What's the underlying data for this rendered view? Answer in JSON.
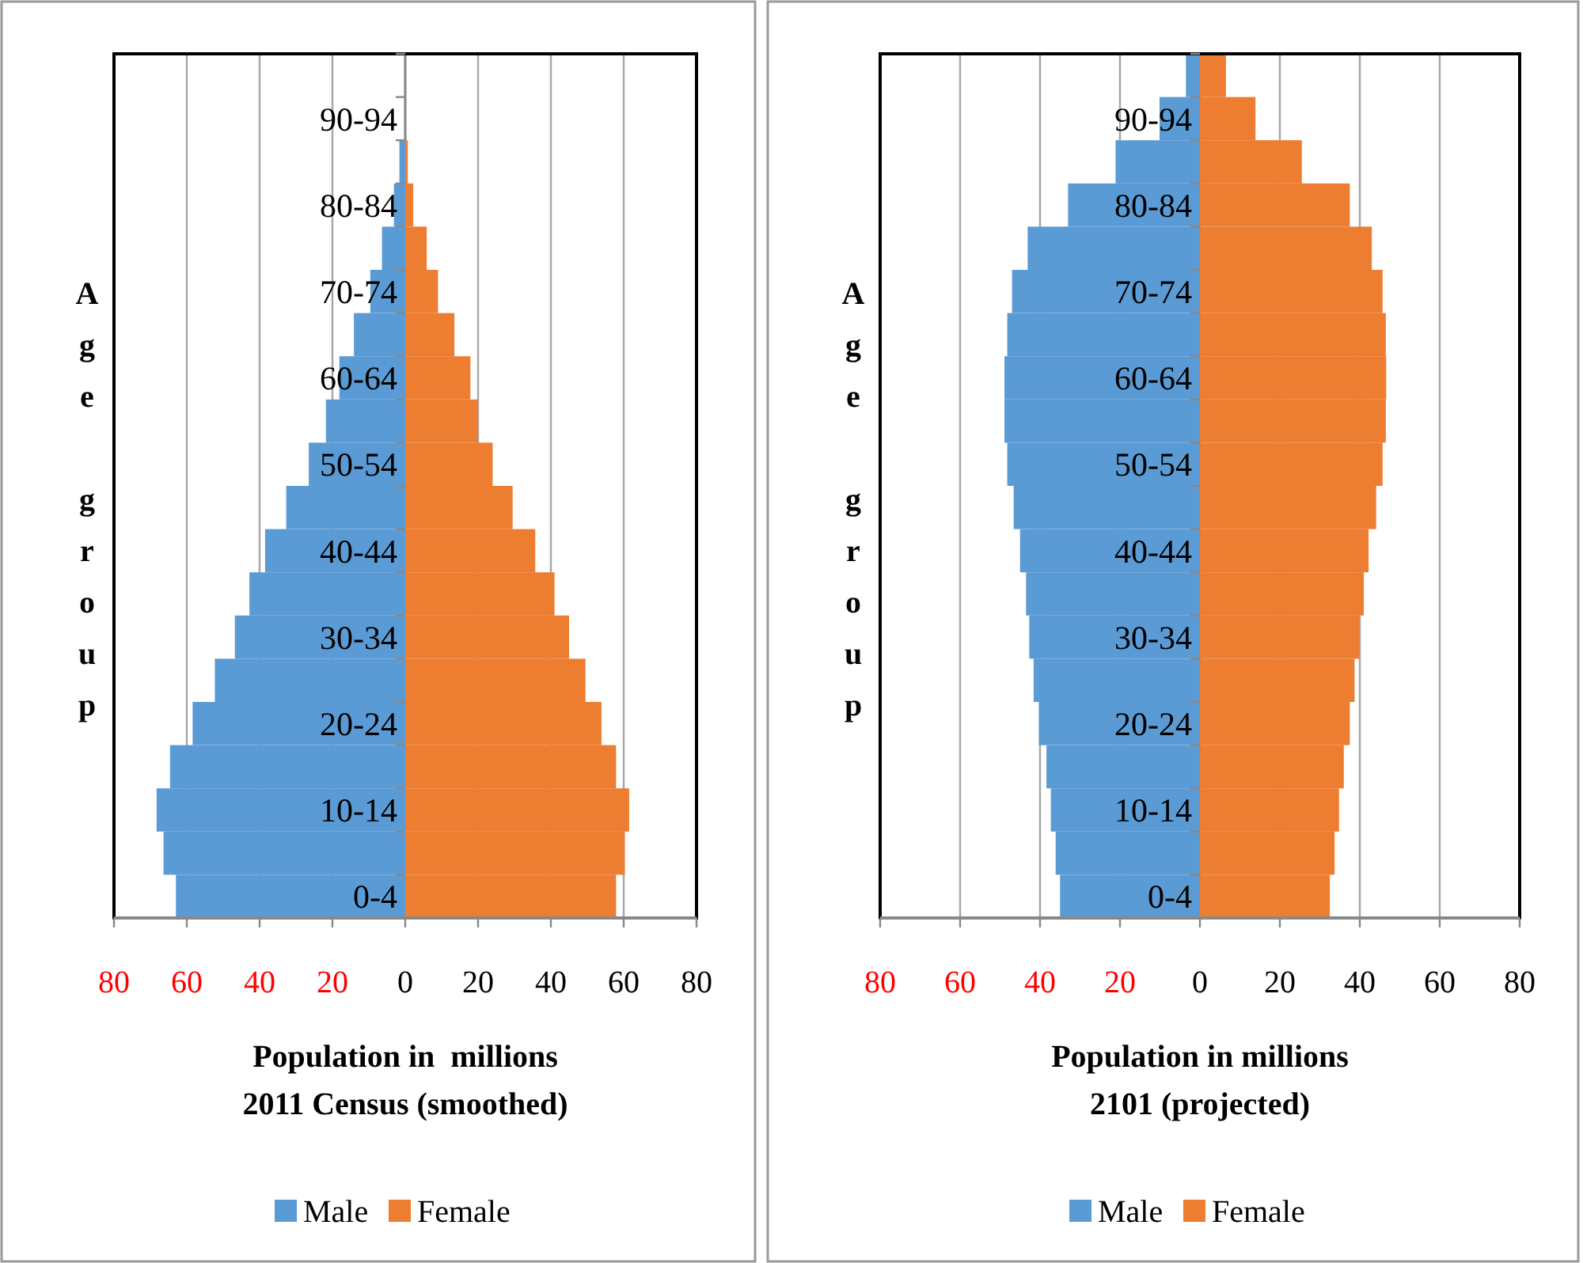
{
  "chart_data": [
    {
      "type": "bar",
      "orientation": "horizontal",
      "ylabel": "Age group",
      "xlabel": "Population in  millions\n2011 Census (smoothed)",
      "categories": [
        null,
        "90-94",
        null,
        "80-84",
        null,
        "70-74",
        null,
        "60-64",
        null,
        "50-54",
        null,
        "40-44",
        null,
        "30-34",
        null,
        "20-24",
        null,
        "10-14",
        null,
        "0-4"
      ],
      "series": [
        {
          "name": "Male",
          "color": "#5b9bd5",
          "values": [
            0,
            0,
            -1.6,
            -3.1,
            -6.4,
            -9.6,
            -14.1,
            -18.1,
            -21.8,
            -26.5,
            -32.7,
            -38.5,
            -42.8,
            -46.8,
            -52.3,
            -58.4,
            -64.6,
            -68.3,
            -66.4,
            -63.0
          ]
        },
        {
          "name": "Female",
          "color": "#ed7d31",
          "values": [
            0,
            0,
            0.7,
            2.2,
            5.9,
            9.0,
            13.5,
            17.9,
            20.0,
            24.0,
            29.5,
            35.7,
            41.0,
            45.0,
            49.5,
            53.9,
            57.9,
            61.5,
            60.3,
            57.9
          ]
        }
      ],
      "xlim": [
        -80,
        80
      ],
      "xticks": [
        {
          "value": -80,
          "label": "80"
        },
        {
          "value": -60,
          "label": "60"
        },
        {
          "value": -40,
          "label": "40"
        },
        {
          "value": -20,
          "label": "20"
        },
        0,
        20,
        40,
        60,
        80
      ],
      "grid": "x",
      "legend": "bottom",
      "stacked": true
    },
    {
      "type": "bar",
      "orientation": "horizontal",
      "ylabel": "Age group",
      "xlabel": "Population in millions\n2101 (projected)",
      "categories": [
        null,
        "90-94",
        null,
        "80-84",
        null,
        "70-74",
        null,
        "60-64",
        null,
        "50-54",
        null,
        "40-44",
        null,
        "30-34",
        null,
        "20-24",
        null,
        "10-14",
        null,
        "0-4"
      ],
      "series": [
        {
          "name": "Male",
          "color": "#5b9bd5",
          "values": [
            -3.5,
            -10.1,
            -21.1,
            -33.0,
            -43.1,
            -47.0,
            -48.2,
            -48.9,
            -48.9,
            -48.2,
            -46.6,
            -45.0,
            -43.5,
            -42.7,
            -41.6,
            -40.3,
            -38.4,
            -37.3,
            -36.1,
            -35.0
          ]
        },
        {
          "name": "Female",
          "color": "#ed7d31",
          "values": [
            6.5,
            13.9,
            25.5,
            37.5,
            43.0,
            45.7,
            46.5,
            46.6,
            46.5,
            45.7,
            44.1,
            42.2,
            41.0,
            39.9,
            38.7,
            37.5,
            36.0,
            34.8,
            33.7,
            32.5
          ]
        }
      ],
      "xlim": [
        -80,
        80
      ],
      "xticks": [
        {
          "value": -80,
          "label": "80"
        },
        {
          "value": -60,
          "label": "60"
        },
        {
          "value": -40,
          "label": "40"
        },
        {
          "value": -20,
          "label": "20"
        },
        0,
        20,
        40,
        60,
        80
      ],
      "grid": "x",
      "legend": "bottom",
      "stacked": true
    }
  ]
}
